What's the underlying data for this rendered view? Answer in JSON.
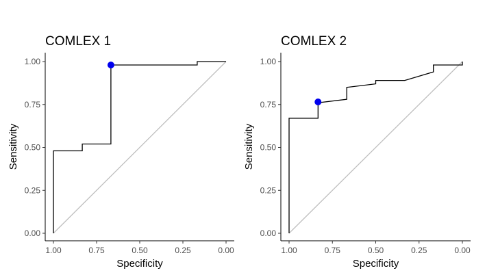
{
  "chart_data": [
    {
      "type": "line",
      "title": "COMLEX 1",
      "xlabel": "Specificity",
      "ylabel": "Sensitivity",
      "x_reversed": true,
      "xlim": [
        1.0,
        0.0
      ],
      "ylim": [
        0.0,
        1.0
      ],
      "xticks": [
        "1.00",
        "0.75",
        "0.50",
        "0.25",
        "0.00"
      ],
      "yticks": [
        "0.00",
        "0.25",
        "0.50",
        "0.75",
        "1.00"
      ],
      "grid": false,
      "reference_line": {
        "from": [
          1.0,
          0.0
        ],
        "to": [
          0.0,
          1.0
        ],
        "color": "#bfbfbf"
      },
      "line_color": "#000000",
      "point_color": "#0000ee",
      "series": [
        {
          "x": [
            1.0,
            1.0,
            0.833,
            0.833,
            0.667,
            0.667,
            0.167,
            0.167,
            0.0
          ],
          "y": [
            0.0,
            0.48,
            0.48,
            0.52,
            0.52,
            0.98,
            0.98,
            1.0,
            1.0
          ]
        }
      ],
      "highlight_point": {
        "x": 0.667,
        "y": 0.98
      }
    },
    {
      "type": "line",
      "title": "COMLEX 2",
      "xlabel": "Specificity",
      "ylabel": "Sensitivity",
      "x_reversed": true,
      "xlim": [
        1.0,
        0.0
      ],
      "ylim": [
        0.0,
        1.0
      ],
      "xticks": [
        "1.00",
        "0.75",
        "0.50",
        "0.25",
        "0.00"
      ],
      "yticks": [
        "0.00",
        "0.25",
        "0.50",
        "0.75",
        "1.00"
      ],
      "grid": false,
      "reference_line": {
        "from": [
          1.0,
          0.0
        ],
        "to": [
          0.0,
          1.0
        ],
        "color": "#bfbfbf"
      },
      "line_color": "#000000",
      "point_color": "#0000ee",
      "series": [
        {
          "x": [
            1.0,
            1.0,
            0.833,
            0.833,
            0.667,
            0.667,
            0.5,
            0.5,
            0.333,
            0.167,
            0.167,
            0.0,
            0.0
          ],
          "y": [
            0.0,
            0.67,
            0.67,
            0.76,
            0.78,
            0.85,
            0.87,
            0.89,
            0.89,
            0.94,
            0.98,
            0.98,
            1.0
          ]
        }
      ],
      "highlight_point": {
        "x": 0.833,
        "y": 0.765
      }
    }
  ]
}
